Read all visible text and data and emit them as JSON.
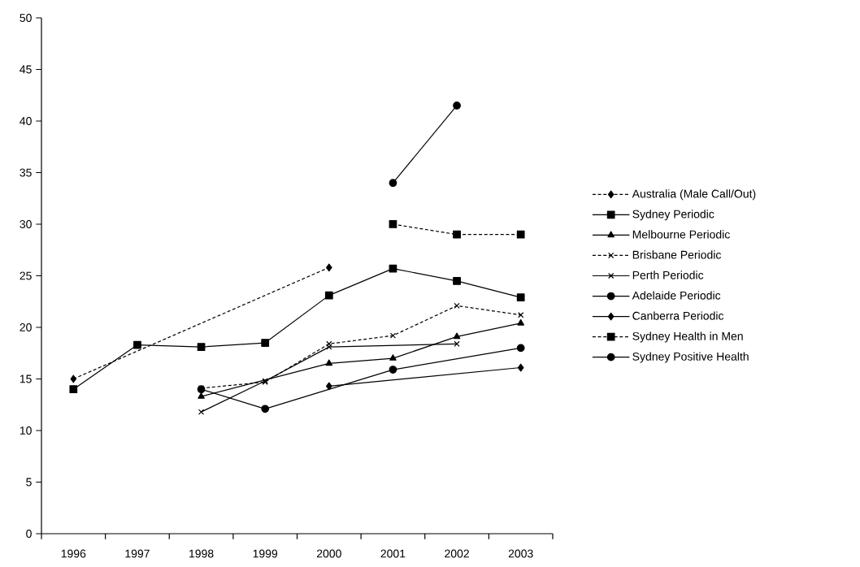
{
  "chart_data": {
    "type": "line",
    "categories": [
      "1996",
      "1997",
      "1998",
      "1999",
      "2000",
      "2001",
      "2002",
      "2003"
    ],
    "ylim": [
      0,
      50
    ],
    "yticks": [
      0,
      5,
      10,
      15,
      20,
      25,
      30,
      35,
      40,
      45,
      50
    ],
    "grid": false,
    "legend": "right",
    "series": [
      {
        "name": "Australia (Male Call/Out)",
        "color": "#000000",
        "marker": "diamond",
        "line_style": "dashed",
        "values": [
          15.0,
          null,
          null,
          null,
          25.8,
          null,
          null,
          null
        ]
      },
      {
        "name": "Sydney Periodic",
        "color": "#000000",
        "marker": "square",
        "line_style": "solid",
        "values": [
          14.0,
          18.3,
          18.1,
          18.5,
          23.1,
          25.7,
          24.5,
          22.9
        ]
      },
      {
        "name": "Melbourne Periodic",
        "color": "#000000",
        "marker": "triangle",
        "line_style": "solid",
        "values": [
          null,
          null,
          13.3,
          null,
          16.5,
          17.0,
          19.1,
          20.4
        ]
      },
      {
        "name": "Brisbane Periodic",
        "color": "#000000",
        "marker": "cross",
        "line_style": "dashed",
        "values": [
          null,
          null,
          14.1,
          14.7,
          18.4,
          19.2,
          22.1,
          21.2
        ]
      },
      {
        "name": "Perth Periodic",
        "color": "#000000",
        "marker": "cross",
        "line_style": "solid",
        "values": [
          null,
          null,
          11.8,
          14.8,
          18.1,
          null,
          18.4,
          null
        ]
      },
      {
        "name": "Adelaide Periodic",
        "color": "#000000",
        "marker": "circle",
        "line_style": "solid",
        "values": [
          null,
          null,
          14.0,
          12.1,
          null,
          15.9,
          null,
          18.0
        ]
      },
      {
        "name": "Canberra Periodic",
        "color": "#000000",
        "marker": "diamond",
        "line_style": "solid",
        "values": [
          null,
          null,
          null,
          null,
          14.3,
          null,
          null,
          16.1
        ]
      },
      {
        "name": "Sydney Health in Men",
        "color": "#000000",
        "marker": "square",
        "line_style": "dashed",
        "values": [
          null,
          null,
          null,
          null,
          null,
          30.0,
          29.0,
          29.0
        ]
      },
      {
        "name": "Sydney Positive Health",
        "color": "#000000",
        "marker": "circle",
        "line_style": "solid",
        "values": [
          null,
          null,
          null,
          null,
          null,
          34.0,
          41.5,
          null
        ]
      }
    ]
  }
}
